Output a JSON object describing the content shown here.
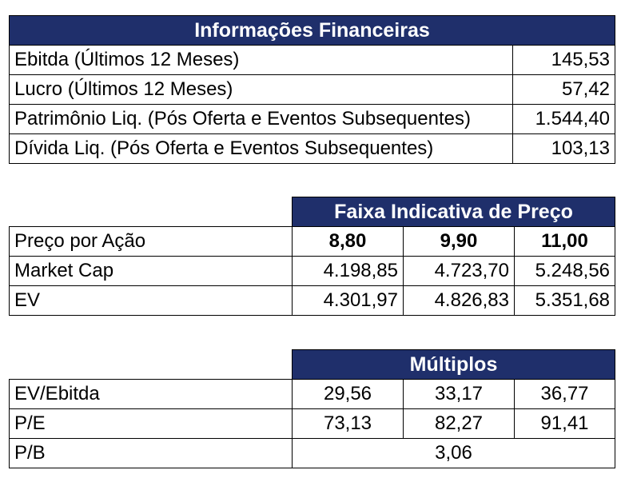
{
  "financials": {
    "title": "Informações Financeiras",
    "rows": [
      {
        "label": "Ebitda (Últimos 12 Meses)",
        "value": "145,53"
      },
      {
        "label": "Lucro (Últimos 12 Meses)",
        "value": "57,42"
      },
      {
        "label": "Patrimônio Liq. (Pós Oferta e Eventos Subsequentes)",
        "value": "1.544,40"
      },
      {
        "label": "Dívida Liq. (Pós Oferta e Eventos Subsequentes)",
        "value": "103,13"
      }
    ]
  },
  "price_range": {
    "title": "Faixa Indicativa de Preço",
    "header_row": {
      "label": "Preço por Ação",
      "values": [
        "8,80",
        "9,90",
        "11,00"
      ]
    },
    "rows": [
      {
        "label": "Market Cap",
        "values": [
          "4.198,85",
          "4.723,70",
          "5.248,56"
        ]
      },
      {
        "label": "EV",
        "values": [
          "4.301,97",
          "4.826,83",
          "5.351,68"
        ]
      }
    ]
  },
  "multiples": {
    "title": "Múltiplos",
    "rows": [
      {
        "label": "EV/Ebitda",
        "values": [
          "29,56",
          "33,17",
          "36,77"
        ]
      },
      {
        "label": "P/E",
        "values": [
          "73,13",
          "82,27",
          "91,41"
        ]
      }
    ],
    "pb": {
      "label": "P/B",
      "value": "3,06"
    }
  }
}
